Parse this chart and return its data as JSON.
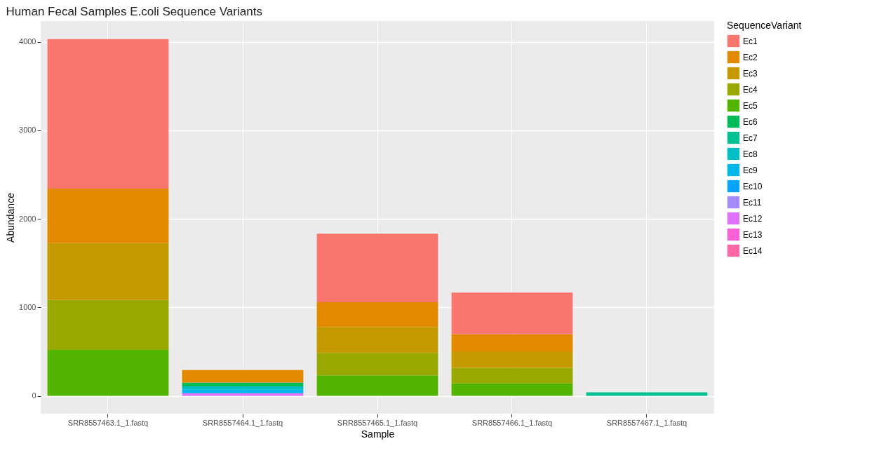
{
  "chart_data": {
    "type": "bar",
    "stacked": true,
    "title": "Human Fecal Samples E.coli Sequence Variants",
    "xlabel": "Sample",
    "ylabel": "Abundance",
    "legend_title": "SequenceVariant",
    "legend": "right",
    "grid": true,
    "categories": [
      "SRR8557463.1_1.fastq",
      "SRR8557464.1_1.fastq",
      "SRR8557465.1_1.fastq",
      "SRR8557466.1_1.fastq",
      "SRR8557467.1_1.fastq"
    ],
    "ylim": [
      -201,
      4234
    ],
    "yticks": [
      0,
      1000,
      2000,
      3000,
      4000
    ],
    "series": [
      {
        "name": "Ec14",
        "color": "#ff66a8",
        "values": [
          null,
          null,
          null,
          null,
          null
        ]
      },
      {
        "name": "Ec13",
        "color": "#fb61d7",
        "values": [
          null,
          null,
          null,
          null,
          null
        ]
      },
      {
        "name": "Ec12",
        "color": "#df70f8",
        "values": [
          null,
          30,
          null,
          null,
          null
        ]
      },
      {
        "name": "Ec11",
        "color": "#a58aff",
        "values": [
          null,
          null,
          null,
          null,
          null
        ]
      },
      {
        "name": "Ec10",
        "color": "#06a4ff",
        "values": [
          null,
          null,
          null,
          null,
          null
        ]
      },
      {
        "name": "Ec9",
        "color": "#00b6eb",
        "values": [
          null,
          45,
          null,
          null,
          null
        ]
      },
      {
        "name": "Ec8",
        "color": "#00bfc4",
        "values": [
          null,
          33,
          null,
          null,
          null
        ]
      },
      {
        "name": "Ec7",
        "color": "#00c094",
        "values": [
          null,
          null,
          null,
          null,
          40
        ]
      },
      {
        "name": "Ec6",
        "color": "#00bc56",
        "values": [
          null,
          43,
          null,
          null,
          null
        ]
      },
      {
        "name": "Ec5",
        "color": "#53b400",
        "values": [
          519,
          null,
          232,
          141,
          null
        ]
      },
      {
        "name": "Ec4",
        "color": "#99a800",
        "values": [
          564,
          null,
          255,
          177,
          null
        ]
      },
      {
        "name": "Ec3",
        "color": "#c49a00",
        "values": [
          642,
          null,
          293,
          185,
          null
        ]
      },
      {
        "name": "Ec2",
        "color": "#e38900",
        "values": [
          617,
          141,
          278,
          194,
          null
        ]
      },
      {
        "name": "Ec1",
        "color": "#f8766d",
        "values": [
          1689,
          null,
          775,
          470,
          null
        ]
      }
    ]
  }
}
